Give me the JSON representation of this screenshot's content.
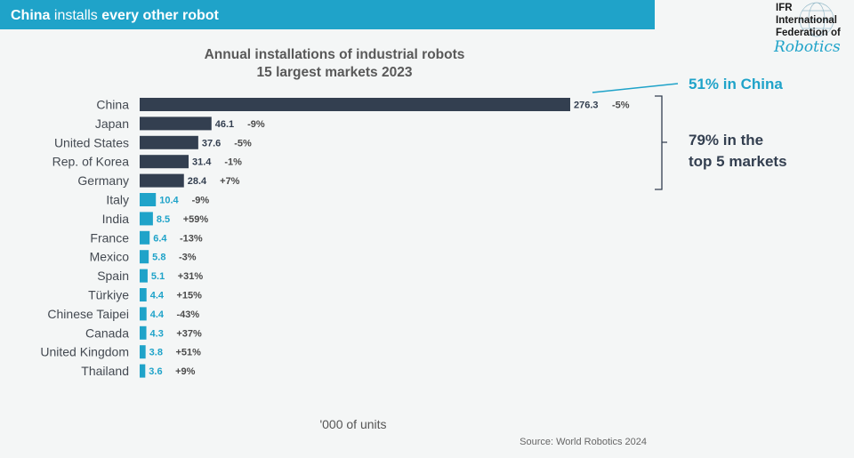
{
  "banner": {
    "part1": "China",
    "part2": " installs ",
    "part3": "every other robot"
  },
  "logo": {
    "line1": "IFR",
    "line2": "International",
    "line3": "Federation of",
    "line4": "Robotics"
  },
  "callouts": {
    "china_share": "51% in China",
    "top5_line1": "79% in the",
    "top5_line2": "top 5 markets"
  },
  "footer": {
    "units": "'000 of units",
    "source": "Source: World Robotics 2024"
  },
  "colors": {
    "banner": "#1fa3c9",
    "dark_bar": "#333f50",
    "light_bar": "#1fa3c9",
    "callout": "#1fa3c9",
    "callout_dark": "#333f50"
  },
  "chart_data": {
    "type": "bar",
    "orientation": "horizontal",
    "title_line1": "Annual installations of industrial robots",
    "title_line2": "15 largest markets 2023",
    "unit": "'000 of units",
    "categories": [
      "China",
      "Japan",
      "United States",
      "Rep. of Korea",
      "Germany",
      "Italy",
      "India",
      "France",
      "Mexico",
      "Spain",
      "Türkiye",
      "Chinese Taipei",
      "Canada",
      "United Kingdom",
      "Thailand"
    ],
    "values": [
      276.3,
      46.1,
      37.6,
      31.4,
      28.4,
      10.4,
      8.5,
      6.4,
      5.8,
      5.1,
      4.4,
      4.4,
      4.3,
      3.8,
      3.6
    ],
    "value_labels": [
      "276.3",
      "46.1",
      "37.6",
      "31.4",
      "28.4",
      "10.4",
      "8.5",
      "6.4",
      "5.8",
      "5.1",
      "4.4",
      "4.4",
      "4.3",
      "3.8",
      "3.6"
    ],
    "changes": [
      "-5%",
      "-9%",
      "-5%",
      "-1%",
      "+7%",
      "-9%",
      "+59%",
      "-13%",
      "-3%",
      "+31%",
      "+15%",
      "-43%",
      "+37%",
      "+51%",
      "+9%"
    ],
    "highlight_top_n": 5,
    "xlim": [
      0,
      276.3
    ],
    "grid": false,
    "legend": "none"
  }
}
